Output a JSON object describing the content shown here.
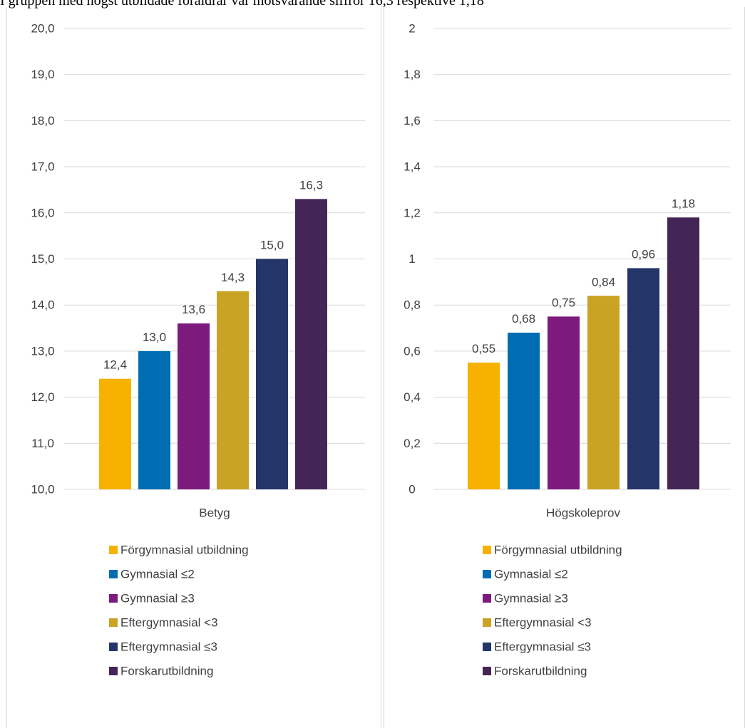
{
  "intro_text": "I gruppen med högst utbildade föräldrar var motsvarande siffror 16,3 respektive 1,18",
  "colors": {
    "Förgymnasial utbildning": "#F7B100",
    "Gymnasial ≤2": "#006DB3",
    "Gymnasial ≥3": "#7D1A7E",
    "Eftergymnasial <3": "#C9A323",
    "Eftergymnasial ≤3": "#24356A",
    "Forskarutbildning": "#452555"
  },
  "chart_data": [
    {
      "type": "bar",
      "category": "Betyg",
      "series": [
        {
          "name": "Förgymnasial utbildning",
          "value": 12.4,
          "label": "12,4"
        },
        {
          "name": "Gymnasial ≤2",
          "value": 13.0,
          "label": "13,0"
        },
        {
          "name": "Gymnasial ≥3",
          "value": 13.6,
          "label": "13,6"
        },
        {
          "name": "Eftergymnasial <3",
          "value": 14.3,
          "label": "14,3"
        },
        {
          "name": "Eftergymnasial ≤3",
          "value": 15.0,
          "label": "15,0"
        },
        {
          "name": "Forskarutbildning",
          "value": 16.3,
          "label": "16,3"
        }
      ],
      "ylim": [
        10,
        20
      ],
      "yticks": [
        "10,0",
        "11,0",
        "12,0",
        "13,0",
        "14,0",
        "15,0",
        "16,0",
        "17,0",
        "18,0",
        "19,0",
        "20,0"
      ],
      "grid": true,
      "legend_position": "bottom"
    },
    {
      "type": "bar",
      "category": "Högskoleprov",
      "series": [
        {
          "name": "Förgymnasial utbildning",
          "value": 0.55,
          "label": "0,55"
        },
        {
          "name": "Gymnasial ≤2",
          "value": 0.68,
          "label": "0,68"
        },
        {
          "name": "Gymnasial ≥3",
          "value": 0.75,
          "label": "0,75"
        },
        {
          "name": "Eftergymnasial <3",
          "value": 0.84,
          "label": "0,84"
        },
        {
          "name": "Eftergymnasial ≤3",
          "value": 0.96,
          "label": "0,96"
        },
        {
          "name": "Forskarutbildning",
          "value": 1.18,
          "label": "1,18"
        }
      ],
      "ylim": [
        0,
        2
      ],
      "yticks": [
        "0",
        "0,2",
        "0,4",
        "0,6",
        "0,8",
        "1",
        "1,2",
        "1,4",
        "1,6",
        "1,8",
        "2"
      ],
      "grid": true,
      "legend_position": "bottom"
    }
  ]
}
